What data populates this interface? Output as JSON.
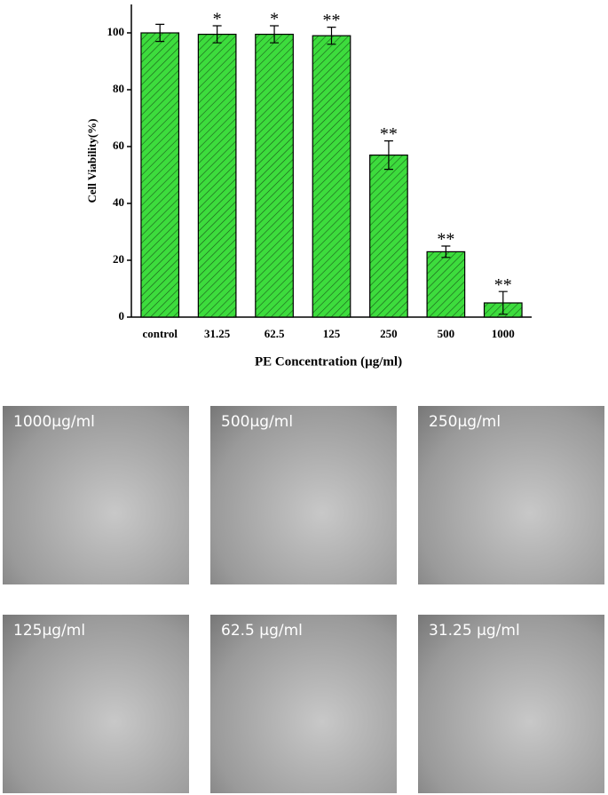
{
  "chart_data": {
    "type": "bar",
    "y_label": "Cell Viability(%)",
    "x_label": "PE Concentration (µg/ml)",
    "categories": [
      "control",
      "31.25",
      "62.5",
      "125",
      "250",
      "500",
      "1000"
    ],
    "values": [
      100,
      99.5,
      99.5,
      99,
      57,
      23,
      5
    ],
    "errors": [
      3,
      3,
      3,
      3,
      5,
      2,
      4
    ],
    "significance": [
      null,
      "*",
      "*",
      "**",
      "**",
      "**",
      "**"
    ],
    "color": "#3ddc3d",
    "ylim": [
      0,
      110
    ],
    "yticks": [
      0,
      20,
      40,
      60,
      80,
      100
    ]
  },
  "panels": [
    {
      "label": "1000µg/ml"
    },
    {
      "label": "500µg/ml"
    },
    {
      "label": "250µg/ml"
    },
    {
      "label": "125µg/ml"
    },
    {
      "label": "62.5 µg/ml"
    },
    {
      "label": "31.25 µg/ml"
    }
  ]
}
